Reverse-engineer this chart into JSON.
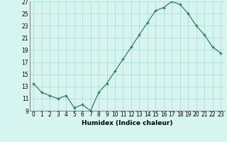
{
  "x": [
    0,
    1,
    2,
    3,
    4,
    5,
    6,
    7,
    8,
    9,
    10,
    11,
    12,
    13,
    14,
    15,
    16,
    17,
    18,
    19,
    20,
    21,
    22,
    23
  ],
  "y": [
    13.5,
    12.0,
    11.5,
    11.0,
    11.5,
    9.5,
    10.0,
    9.0,
    12.0,
    13.5,
    15.5,
    17.5,
    19.5,
    21.5,
    23.5,
    25.5,
    26.0,
    27.0,
    26.5,
    25.0,
    23.0,
    21.5,
    19.5,
    18.5
  ],
  "xlabel": "Humidex (Indice chaleur)",
  "ylim": [
    9,
    27
  ],
  "yticks": [
    9,
    11,
    13,
    15,
    17,
    19,
    21,
    23,
    25,
    27
  ],
  "xticks": [
    0,
    1,
    2,
    3,
    4,
    5,
    6,
    7,
    8,
    9,
    10,
    11,
    12,
    13,
    14,
    15,
    16,
    17,
    18,
    19,
    20,
    21,
    22,
    23
  ],
  "line_color": "#2e7d6e",
  "marker": "+",
  "bg_color": "#d6f5f0",
  "grid_color": "#aad8d2",
  "axis_fontsize": 6.5,
  "tick_fontsize": 5.5
}
